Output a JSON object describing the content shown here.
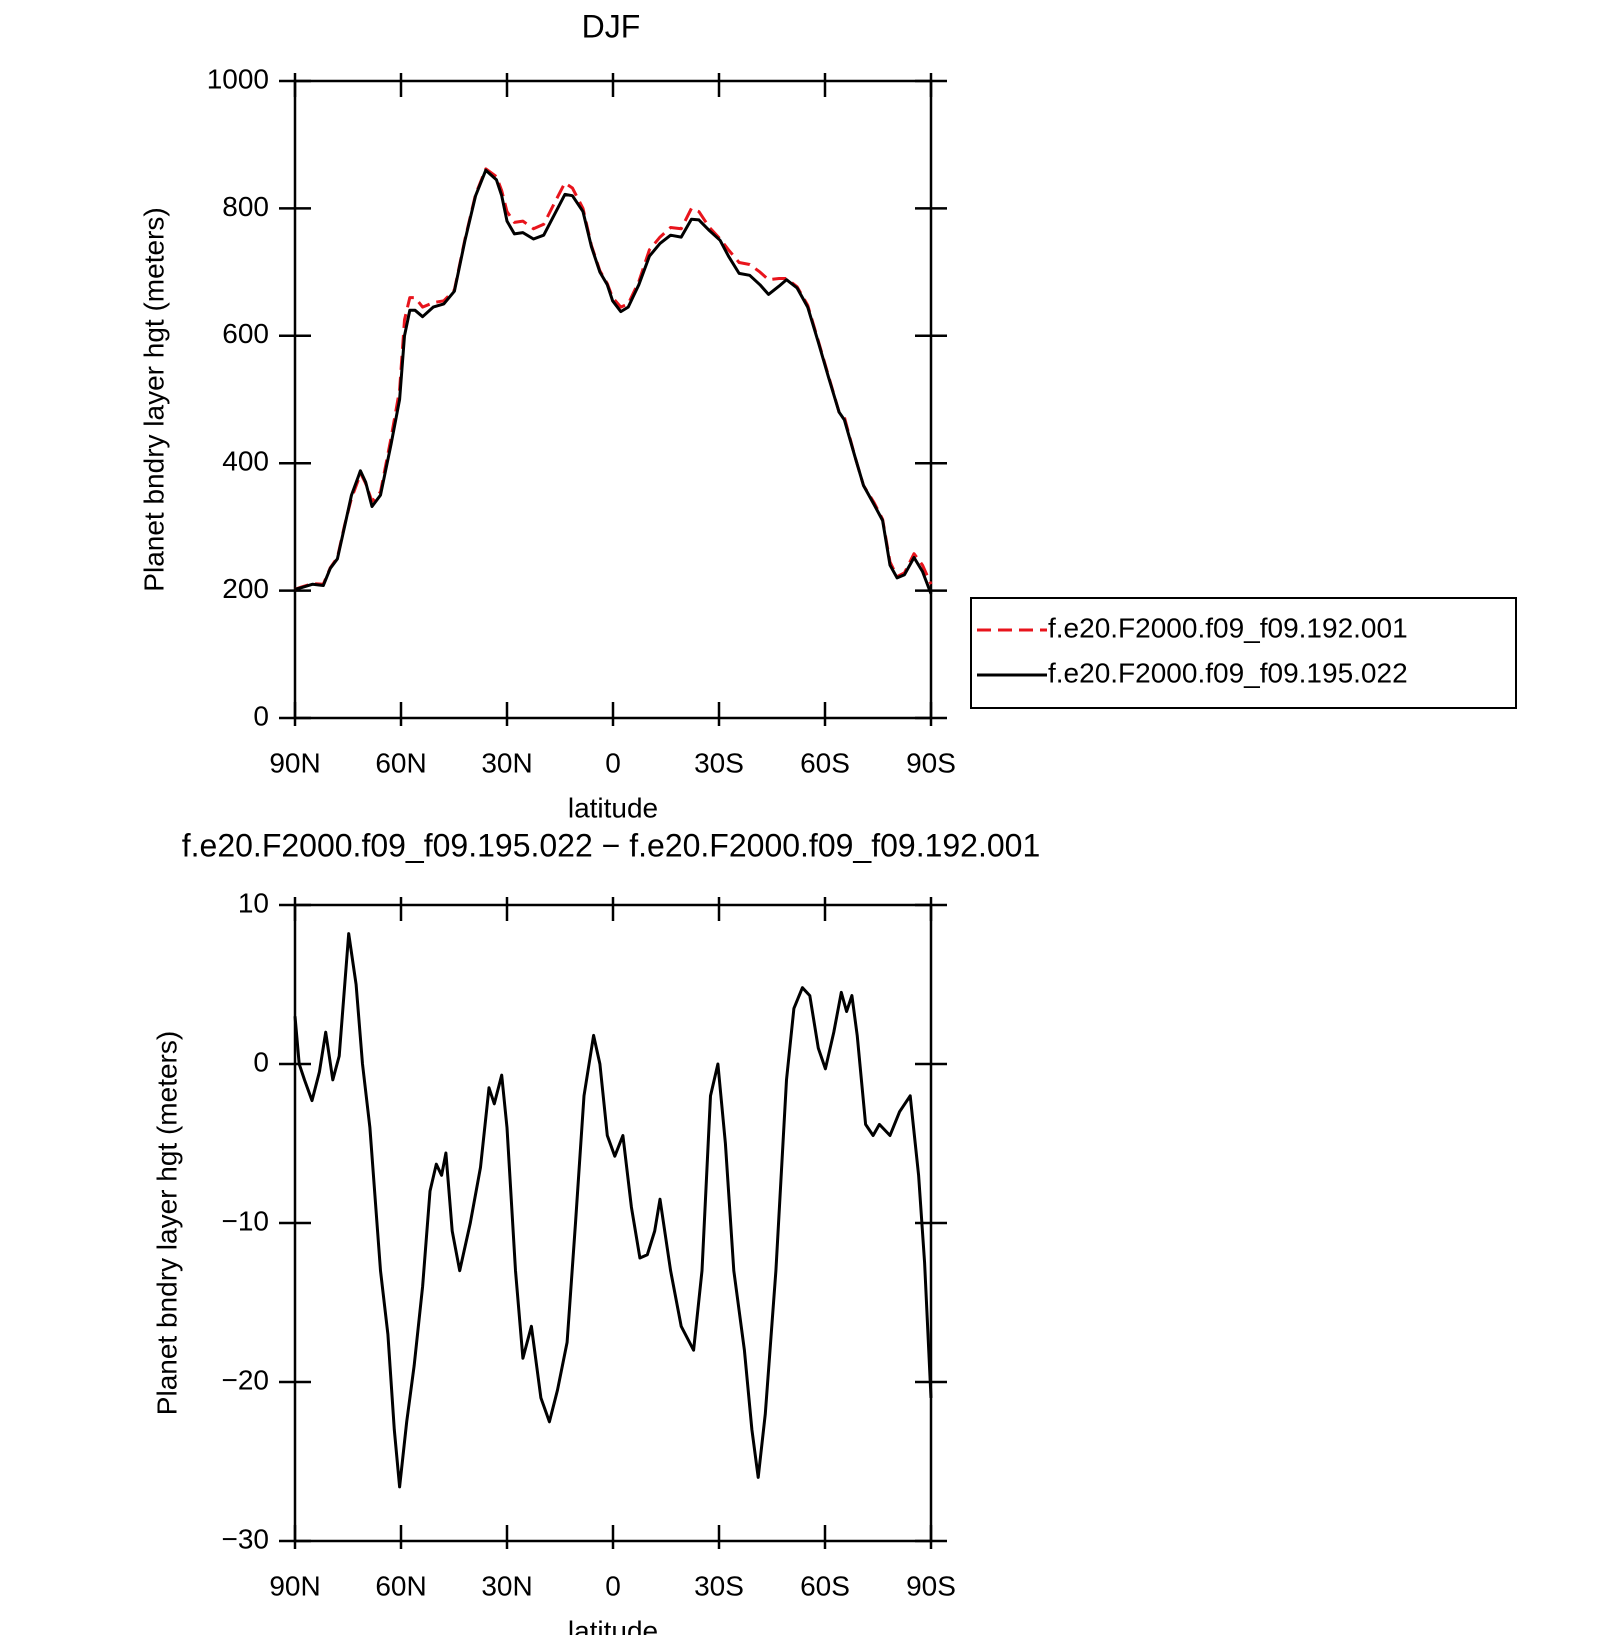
{
  "chart_data": [
    {
      "type": "line",
      "title": "DJF",
      "xlabel": "latitude",
      "ylabel": "Planet bndry layer hgt (meters)",
      "xlim": [
        90,
        -90
      ],
      "xticks": [
        {
          "value": 90,
          "label": "90N"
        },
        {
          "value": 60,
          "label": "60N"
        },
        {
          "value": 30,
          "label": "30N"
        },
        0,
        {
          "value": -30,
          "label": "30S"
        },
        {
          "value": -60,
          "label": "60S"
        },
        {
          "value": -90,
          "label": "90S"
        }
      ],
      "ylim": [
        0,
        1000
      ],
      "yticks": [
        0,
        200,
        400,
        600,
        800,
        1000
      ],
      "legend": "right",
      "x": [
        90,
        88,
        85,
        82,
        80,
        78,
        76,
        74,
        72,
        71.5,
        70,
        68.2,
        65.8,
        62.8,
        60.4,
        59,
        57.5,
        56,
        53.9,
        50.9,
        47.9,
        44.9,
        41.9,
        38.9,
        36,
        33,
        31.5,
        30,
        27.9,
        25.5,
        22.5,
        19.6,
        16.6,
        13.6,
        11.5,
        8.5,
        6.1,
        3.7,
        1.6,
        0.1,
        -2.2,
        -4.3,
        -7.3,
        -10.3,
        -13.3,
        -16.3,
        -19.3,
        -22.2,
        -24.3,
        -27.3,
        -30.3,
        -32.7,
        -35.7,
        -38.7,
        -41.6,
        -44,
        -47,
        -49.1,
        -52.1,
        -55.1,
        -58.1,
        -61,
        -64,
        -65.5,
        -68.5,
        -70.9,
        -73.9,
        -76.3,
        -78.4,
        -80.4,
        -82.5,
        -85.2,
        -87.6,
        -90
      ],
      "series": [
        {
          "name": "f.e20.F2000.f09_f09.192.001",
          "color": "#e8141c",
          "style": "dashed",
          "values": [
            202,
            206,
            211,
            210,
            236,
            252,
            302,
            345,
            375,
            385,
            368,
            340,
            355,
            440,
            515,
            625,
            660,
            660,
            645,
            652,
            655,
            672,
            752,
            822,
            862,
            850,
            828,
            795,
            778,
            780,
            768,
            775,
            808,
            840,
            832,
            800,
            742,
            702,
            682,
            660,
            645,
            650,
            685,
            735,
            755,
            770,
            768,
            800,
            795,
            770,
            752,
            735,
            715,
            712,
            700,
            688,
            690,
            690,
            677,
            648,
            592,
            537,
            480,
            472,
            410,
            365,
            338,
            312,
            245,
            222,
            228,
            258,
            240,
            210
          ]
        },
        {
          "name": "f.e20.F2000.f09_f09.195.022",
          "color": "#000000",
          "style": "solid",
          "values": [
            202,
            205,
            210,
            208,
            235,
            250,
            300,
            350,
            380,
            388,
            370,
            332,
            350,
            430,
            500,
            600,
            640,
            640,
            630,
            645,
            650,
            670,
            750,
            820,
            860,
            845,
            820,
            780,
            760,
            762,
            752,
            758,
            790,
            822,
            820,
            795,
            740,
            700,
            680,
            655,
            638,
            645,
            680,
            725,
            745,
            758,
            755,
            783,
            782,
            765,
            750,
            725,
            698,
            695,
            680,
            665,
            678,
            688,
            675,
            645,
            590,
            535,
            480,
            468,
            410,
            365,
            335,
            310,
            240,
            220,
            225,
            252,
            230,
            195
          ]
        }
      ]
    },
    {
      "type": "line",
      "title": "f.e20.F2000.f09_f09.195.022 − f.e20.F2000.f09_f09.192.001",
      "xlabel": "latitude",
      "ylabel": "Planet bndry layer hgt (meters)",
      "xlim": [
        90,
        -90
      ],
      "xticks": [
        {
          "value": 90,
          "label": "90N"
        },
        {
          "value": 60,
          "label": "60N"
        },
        {
          "value": 30,
          "label": "30N"
        },
        0,
        {
          "value": -30,
          "label": "30S"
        },
        {
          "value": -60,
          "label": "60S"
        },
        {
          "value": -90,
          "label": "90S"
        }
      ],
      "ylim": [
        -30,
        10
      ],
      "yticks": [
        {
          "value": -30,
          "label": "−30"
        },
        {
          "value": -20,
          "label": "−20"
        },
        {
          "value": -10,
          "label": "−10"
        },
        0,
        10
      ],
      "color": "#000000",
      "x": [
        90,
        88.8,
        87.3,
        85.2,
        83.1,
        81.3,
        79.3,
        77.5,
        74.8,
        72.7,
        70.9,
        68.8,
        65.8,
        63.7,
        61.9,
        60.4,
        58.4,
        56.3,
        53.9,
        51.8,
        50,
        48.5,
        47.3,
        45.5,
        43.4,
        40.4,
        37.5,
        35.1,
        33.6,
        31.5,
        30,
        27.6,
        25.5,
        23.1,
        20.4,
        18,
        15.7,
        13,
        10.6,
        8.2,
        5.5,
        3.7,
        1.6,
        -0.5,
        -2.8,
        -5.2,
        -7.6,
        -9.7,
        -11.8,
        -13.3,
        -16.3,
        -19.3,
        -22.8,
        -25.2,
        -27.6,
        -29.7,
        -31.8,
        -34.2,
        -37.2,
        -39.3,
        -41.1,
        -43.1,
        -46.1,
        -49.1,
        -51.2,
        -53.6,
        -55.7,
        -58.1,
        -60.1,
        -62.5,
        -64.6,
        -66.1,
        -67.6,
        -69.1,
        -71.5,
        -73.6,
        -75.4,
        -78.4,
        -81.1,
        -84.1,
        -86.5,
        -88.2,
        -90
      ],
      "values": [
        3,
        0,
        -1,
        -2.3,
        -0.5,
        2,
        -1,
        0.5,
        8.2,
        5,
        0,
        -4,
        -13,
        -17,
        -23,
        -26.6,
        -22.5,
        -19,
        -14,
        -8,
        -6.3,
        -7,
        -5.6,
        -10.5,
        -13,
        -10,
        -6.5,
        -1.5,
        -2.5,
        -0.7,
        -4,
        -13,
        -18.5,
        -16.5,
        -21,
        -22.5,
        -20.5,
        -17.5,
        -10,
        -2,
        1.8,
        0,
        -4.5,
        -5.8,
        -4.5,
        -9,
        -12.2,
        -12,
        -10.5,
        -8.5,
        -13,
        -16.5,
        -18,
        -13,
        -2,
        0,
        -5,
        -13,
        -18,
        -23,
        -26,
        -22,
        -13,
        -1,
        3.5,
        4.8,
        4.3,
        1,
        -0.3,
        2,
        4.5,
        3.3,
        4.3,
        1.8,
        -3.8,
        -4.5,
        -3.8,
        -4.5,
        -3,
        -2,
        -7,
        -12.5,
        -21
      ]
    }
  ]
}
